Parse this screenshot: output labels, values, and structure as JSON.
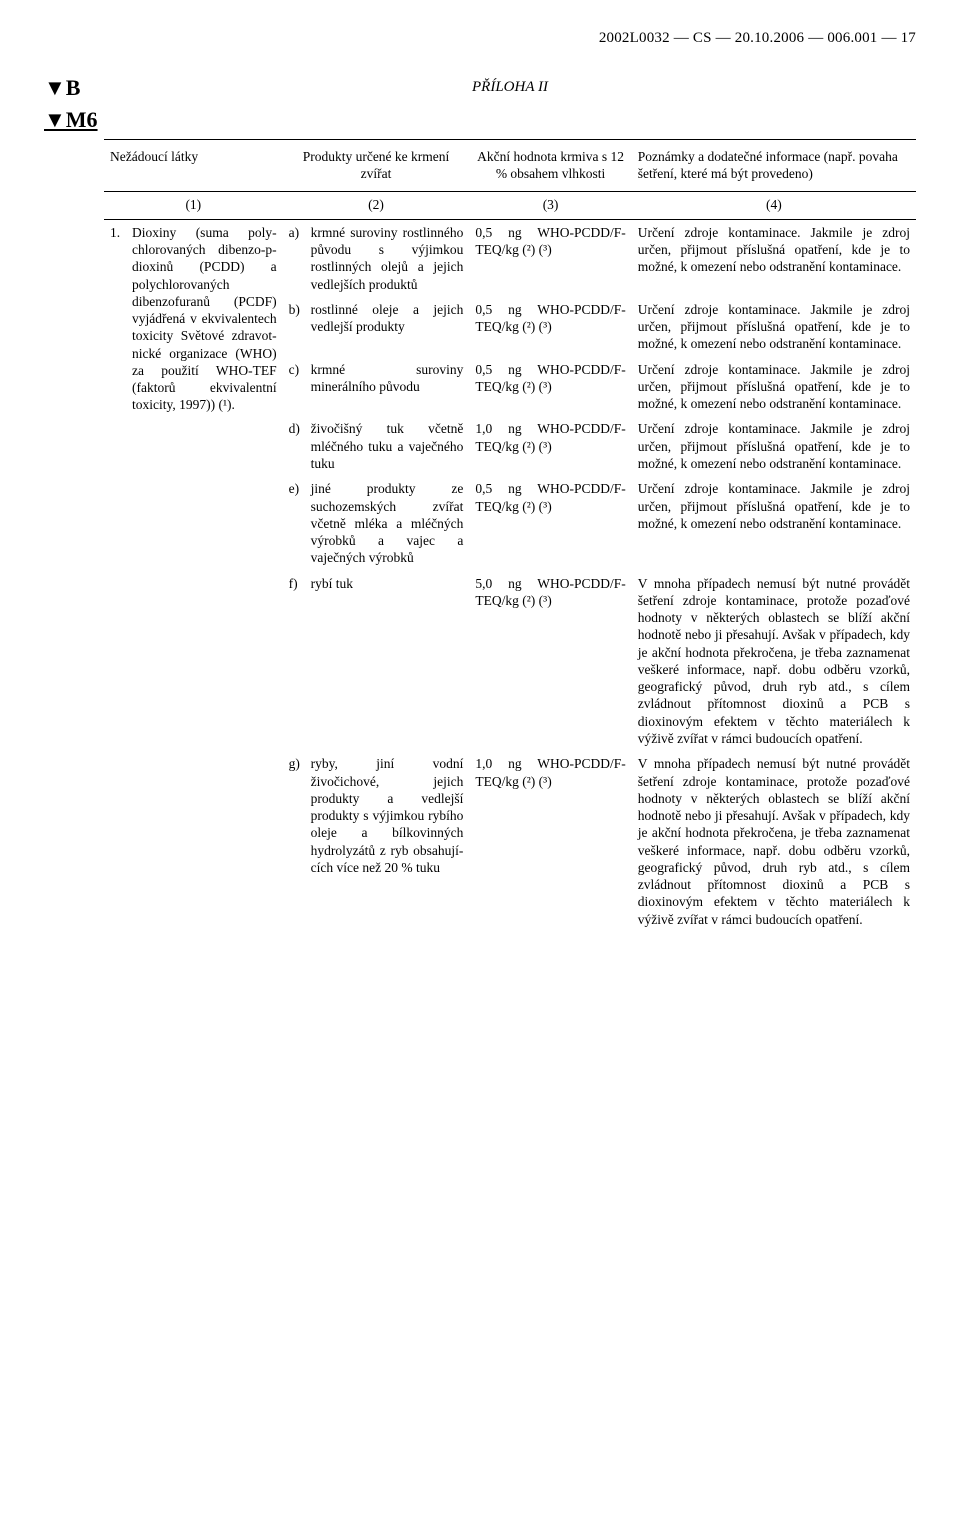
{
  "header": "2002L0032 — CS — 20.10.2006 — 006.001 — 17",
  "marker_b": "▼B",
  "marker_m6": "▼M6",
  "annex": "PŘÍLOHA II",
  "table_head": {
    "c1": "Nežádoucí látky",
    "c2": "Produkty určené ke krmení zvířat",
    "c3": "Akční hodnota krmiva s 12 % obsahem vlhkosti",
    "c4": "Poznámky a dodatečné informace (např. povaha šetření, které má být provedeno)"
  },
  "colnums": {
    "c1": "(1)",
    "c2": "(2)",
    "c3": "(3)",
    "c4": "(4)"
  },
  "substance_label": "1.",
  "substance_text": "Dioxiny (suma poly­chlorovaných dibenzo-p-dioxinů (PCDD) a polychlorovaných dibenzofuranů (PCDF) vyjádřená v ekvivalentech toxi­city Světové zdravot­nické organizace (WHO) za použití WHO-TEF (faktorů ekvivalentní toxicity, 1997)) (¹).",
  "rows": [
    {
      "letter": "a)",
      "product": "krmné suroviny rostlinného původu s výjimkou rostlinných olejů a jejich vedlej­ších produktů",
      "value": "0,5 ng WHO-PCDD/F-TEQ/kg (²) (³)",
      "note": "Určení zdroje kontaminace. Jakmile je zdroj určen, přijmout příslušná opatření, kde je to možné, k omezení nebo odstranění kontami­nace."
    },
    {
      "letter": "b)",
      "product": "rostlinné oleje a jejich vedlejší produkty",
      "value": "0,5 ng WHO-PCDD/F-TEQ/kg (²) (³)",
      "note": "Určení zdroje kontaminace. Jakmile je zdroj určen, přijmout příslušná opatření, kde je to možné, k omezení nebo odstranění kontami­nace."
    },
    {
      "letter": "c)",
      "product": "krmné suroviny minerálního původu",
      "value": "0,5 ng WHO-PCDD/F-TEQ/kg (²) (³)",
      "note": "Určení zdroje kontaminace. Jakmile je zdroj určen, přijmout příslušná opatření, kde je to možné, k omezení nebo odstranění kontami­nace."
    },
    {
      "letter": "d)",
      "product": "živočišný tuk včetně mléčného tuku a vaječného tuku",
      "value": "1,0 ng WHO-PCDD/F-TEQ/kg (²) (³)",
      "note": "Určení zdroje kontaminace. Jakmile je zdroj určen, přijmout příslušná opatření, kde je to možné, k omezení nebo odstranění kontami­nace."
    },
    {
      "letter": "e)",
      "product": "jiné produkty ze suchozemských zvířat včetně mléka a mléčných výrobků a vajec a vaječných výrobků",
      "value": "0,5 ng WHO-PCDD/F-TEQ/kg (²) (³)",
      "note": "Určení zdroje kontaminace. Jakmile je zdroj určen, přijmout příslušná opatření, kde je to možné, k omezení nebo odstranění kontami­nace."
    },
    {
      "letter": "f)",
      "product": "rybí tuk",
      "value": "5,0 ng WHO-PCDD/F-TEQ/kg (²) (³)",
      "note": "V mnoha případech nemusí být nutné provádět šetření zdroje kontaminace, protože pozaďové hodnoty v některých oblastech se blíží akční hodnotě nebo ji přesahují. Avšak v případech, kdy je akční hodnota překročena, je třeba zaznamenat veškeré informace, např. dobu odběru vzorků, geografický původ, druh ryb atd., s cílem zvládnout přítom­nost dioxinů a PCB s dioxinovým efektem v těchto materiálech k výživě zvířat v rámci budoucích opatření."
    },
    {
      "letter": "g)",
      "product": "ryby, jiní vodní živočichové, jejich produkty a vedlejší produkty s výjimkou rybího oleje a bílkovinných hydrolyzátů z ryb obsahují­cích více než 20 % tuku",
      "value": "1,0 ng WHO-PCDD/F-TEQ/kg (²) (³)",
      "note": "V mnoha případech nemusí být nutné provádět šetření zdroje konta­minace, protože pozaďové hodnoty v některých oblastech se blíží akční hodnotě nebo ji přesahují. Avšak v případech, kdy je akční hodnota překročena, je třeba zaznamenat veškeré informace, např. dobu odběru vzorků, geografický původ, druh ryb atd., s cílem zvládnout přítomnost dioxinů a PCB s dioxinovým efektem v těchto materiálech k výživě zvířat v rámci budoucích opatření."
    }
  ]
}
